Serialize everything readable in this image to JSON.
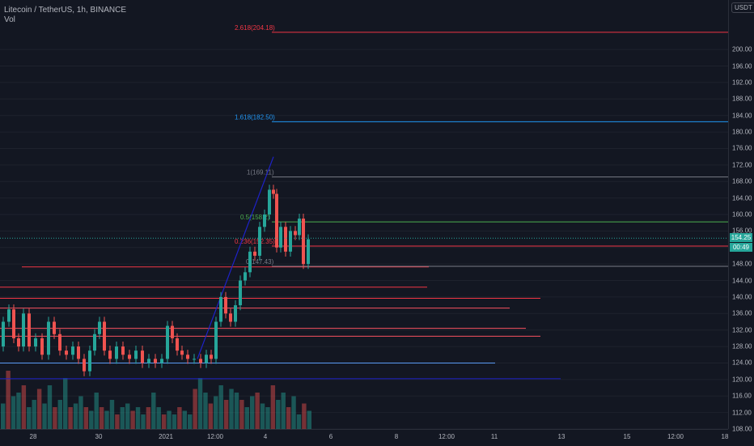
{
  "symbol_legend": "Litecoin / TetherUS, 1h, BINANCE",
  "vol_legend": "Vol",
  "currency": "USDT",
  "current_price_label": "154.25",
  "countdown_label": "00:49",
  "colors": {
    "background": "#131722",
    "up": "#26a69a",
    "down": "#ef5350",
    "fib_red": "#f23645",
    "fib_blue": "#2196f3",
    "fib_green": "#4caf50",
    "trend_blue": "#1e22c8"
  },
  "chart_data": {
    "type": "candlestick",
    "title": "Litecoin / TetherUS, 1h, BINANCE",
    "ylim": [
      108,
      212
    ],
    "price_ticks": [
      "108.00",
      "112.00",
      "116.00",
      "120.00",
      "124.00",
      "128.00",
      "132.00",
      "136.00",
      "140.00",
      "144.00",
      "148.00",
      "152.00",
      "156.00",
      "160.00",
      "164.00",
      "168.00",
      "172.00",
      "176.00",
      "180.00",
      "184.00",
      "188.00",
      "192.00",
      "196.00",
      "200.00"
    ],
    "time_ticks": [
      "28",
      "30",
      "2021",
      "12:00",
      "4",
      "6",
      "8",
      "12:00",
      "11",
      "13",
      "15",
      "12:00",
      "18"
    ],
    "fib_levels": [
      {
        "label": "2.618(204.18)",
        "value": 204.18,
        "color": "#f23645"
      },
      {
        "label": "1.618(182.50)",
        "value": 182.5,
        "color": "#2196f3"
      },
      {
        "label": "1(169.11)",
        "value": 169.11,
        "color": "#787b86"
      },
      {
        "label": "0.5(158.2)",
        "value": 158.2,
        "color": "#4caf50"
      },
      {
        "label": "0.236(152.35)",
        "value": 152.35,
        "color": "#f23645"
      },
      {
        "label": "0(147.43)",
        "value": 147.43,
        "color": "#787b86"
      }
    ],
    "horizontal_lines": [
      {
        "value": 147.3,
        "color": "#f23645"
      },
      {
        "value": 142.4,
        "color": "#f23645"
      },
      {
        "value": 139.7,
        "color": "#f23645"
      },
      {
        "value": 137.3,
        "color": "#f7525f"
      },
      {
        "value": 132.4,
        "color": "#f7525f"
      },
      {
        "value": 130.5,
        "color": "#f7525f"
      },
      {
        "value": 124.0,
        "color": "#5b9cf6"
      },
      {
        "value": 120.2,
        "color": "#1e22c8"
      }
    ],
    "trend_lines": [
      {
        "from": [
          244,
          125.0
        ],
        "to": [
          338,
          174.0
        ],
        "color": "#1e22c8"
      }
    ],
    "last_price": 154.25,
    "price_series": [
      [
        0,
        128
      ],
      [
        8,
        134
      ],
      [
        14,
        137
      ],
      [
        20,
        130
      ],
      [
        26,
        128
      ],
      [
        32,
        136
      ],
      [
        40,
        128
      ],
      [
        48,
        130
      ],
      [
        56,
        126
      ],
      [
        64,
        134
      ],
      [
        70,
        131
      ],
      [
        78,
        127
      ],
      [
        86,
        126
      ],
      [
        94,
        128
      ],
      [
        100,
        125
      ],
      [
        108,
        122
      ],
      [
        114,
        127
      ],
      [
        120,
        131
      ],
      [
        126,
        134
      ],
      [
        132,
        127
      ],
      [
        140,
        125
      ],
      [
        148,
        128
      ],
      [
        156,
        126
      ],
      [
        164,
        125
      ],
      [
        172,
        127
      ],
      [
        180,
        124
      ],
      [
        188,
        125
      ],
      [
        196,
        124
      ],
      [
        204,
        125
      ],
      [
        210,
        133
      ],
      [
        216,
        130
      ],
      [
        222,
        127
      ],
      [
        228,
        126
      ],
      [
        236,
        125
      ],
      [
        244,
        125
      ],
      [
        252,
        124
      ],
      [
        258,
        126
      ],
      [
        264,
        125
      ],
      [
        270,
        134
      ],
      [
        276,
        140
      ],
      [
        282,
        136
      ],
      [
        288,
        134
      ],
      [
        294,
        138
      ],
      [
        300,
        144
      ],
      [
        306,
        146
      ],
      [
        312,
        151
      ],
      [
        318,
        150
      ],
      [
        324,
        157
      ],
      [
        330,
        160
      ],
      [
        336,
        166
      ],
      [
        340,
        165
      ],
      [
        344,
        152
      ],
      [
        350,
        157
      ],
      [
        356,
        151
      ],
      [
        362,
        156
      ],
      [
        368,
        155
      ],
      [
        372,
        159
      ],
      [
        378,
        148
      ],
      [
        384,
        154
      ]
    ],
    "volume_series": [
      0.35,
      0.8,
      0.45,
      0.5,
      0.6,
      0.3,
      0.4,
      0.55,
      0.35,
      0.6,
      0.3,
      0.4,
      0.7,
      0.3,
      0.35,
      0.45,
      0.3,
      0.25,
      0.5,
      0.3,
      0.25,
      0.4,
      0.2,
      0.3,
      0.35,
      0.25,
      0.3,
      0.2,
      0.3,
      0.5,
      0.3,
      0.2,
      0.25,
      0.2,
      0.3,
      0.25,
      0.2,
      0.55,
      0.7,
      0.5,
      0.35,
      0.45,
      0.6,
      0.4,
      0.55,
      0.5,
      0.4,
      0.3,
      0.45,
      0.5,
      0.35,
      0.3,
      0.6,
      0.4,
      0.5,
      0.3,
      0.45,
      0.2,
      0.35,
      0.25
    ]
  }
}
